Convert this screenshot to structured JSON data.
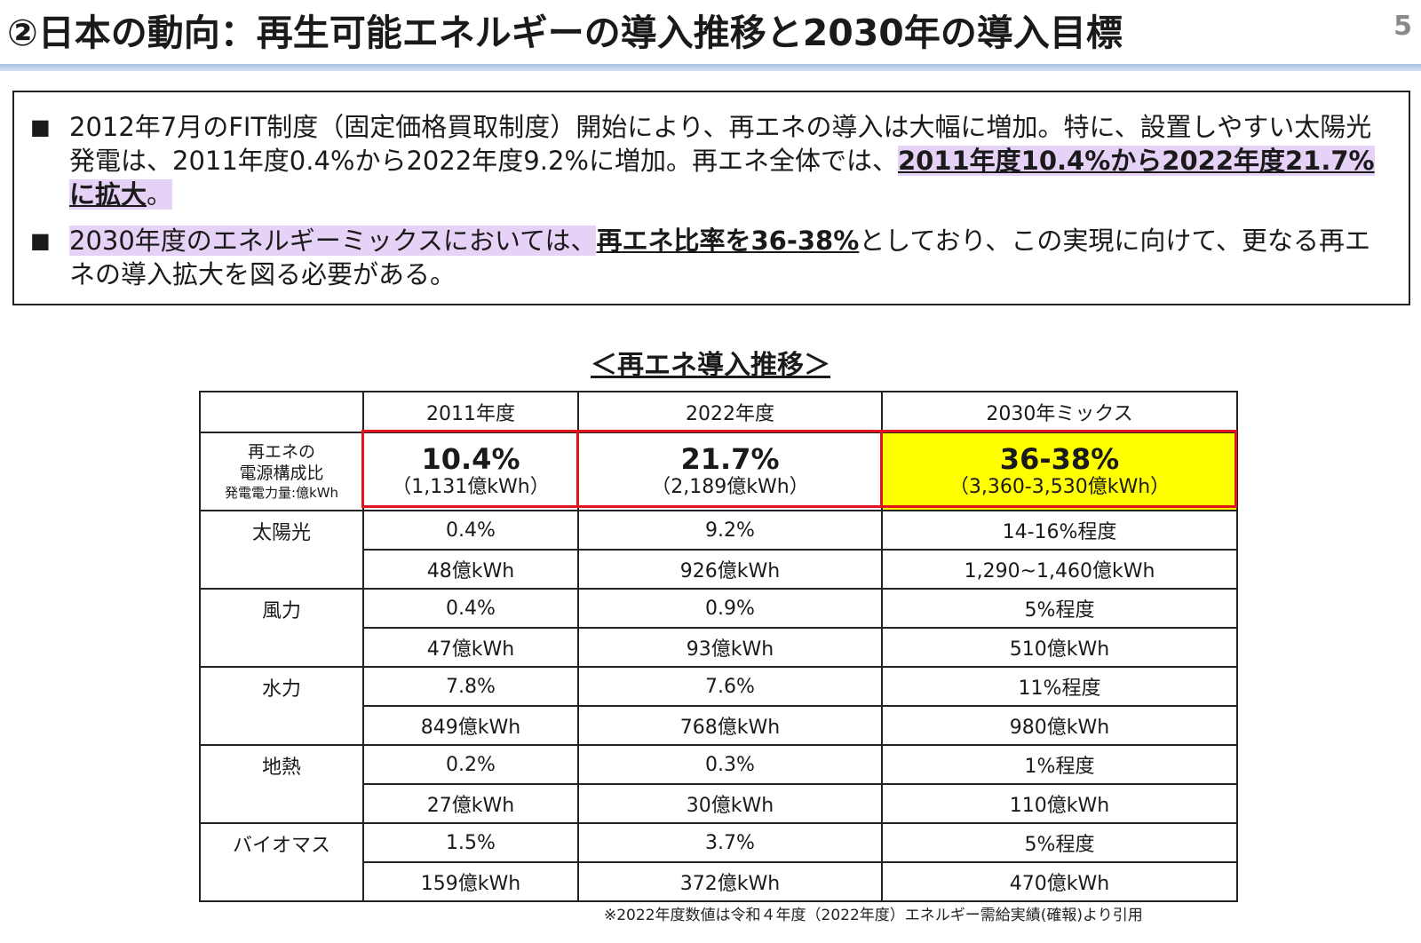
{
  "header": {
    "title": "②日本の動向：再生可能エネルギーの導入推移と2030年の導入目標",
    "page_number": "5"
  },
  "summary": {
    "bullets": [
      {
        "marker": "■",
        "seg1": "2012年7月のFIT制度（固定価格買取制度）開始により、再エネの導入は大幅に増加。特に、設置しやすい太陽光発電は、2011年度0.4%から2022年度9.2%に増加。再エネ全体では、",
        "seg2": "2011年度10.4%から2022年度21.7%に拡大",
        "seg3": "。"
      },
      {
        "marker": "■",
        "seg1": "2030年度のエネルギーミックスにおいては、",
        "seg2": "再エネ比率を36-38%",
        "seg3": "としており、この実現に向けて、更なる再エネの導入拡大を図る必要がある。"
      }
    ]
  },
  "table": {
    "caption": "＜再エネ導入推移＞",
    "columns": [
      "",
      "2011年度",
      "2022年度",
      "2030年ミックス"
    ],
    "headline_row": {
      "label_line1": "再エネの",
      "label_line2": "電源構成比",
      "label_line3": "発電電力量:億kWh",
      "cells": [
        {
          "pct": "10.4%",
          "kwh": "（1,131億kWh）"
        },
        {
          "pct": "21.7%",
          "kwh": "（2,189億kWh）"
        },
        {
          "pct": "36-38%",
          "kwh": "（3,360-3,530億kWh）"
        }
      ]
    },
    "sources": [
      {
        "name": "太陽光",
        "pct": [
          "0.4%",
          "9.2%",
          "14-16%程度"
        ],
        "kwh": [
          "48億kWh",
          "926億kWh",
          "1,290~1,460億kWh"
        ]
      },
      {
        "name": "風力",
        "pct": [
          "0.4%",
          "0.9%",
          "5%程度"
        ],
        "kwh": [
          "47億kWh",
          "93億kWh",
          "510億kWh"
        ]
      },
      {
        "name": "水力",
        "pct": [
          "7.8%",
          "7.6%",
          "11%程度"
        ],
        "kwh": [
          "849億kWh",
          "768億kWh",
          "980億kWh"
        ]
      },
      {
        "name": "地熱",
        "pct": [
          "0.2%",
          "0.3%",
          "1%程度"
        ],
        "kwh": [
          "27億kWh",
          "30億kWh",
          "110億kWh"
        ]
      },
      {
        "name": "バイオマス",
        "pct": [
          "1.5%",
          "3.7%",
          "5%程度"
        ],
        "kwh": [
          "159億kWh",
          "372億kWh",
          "470億kWh"
        ]
      }
    ],
    "highlight_color": "#ffff00",
    "frame_color": "#e0161c"
  },
  "footnote": "※2022年度数値は令和４年度（2022年度）エネルギー需給実績(確報)より引用"
}
